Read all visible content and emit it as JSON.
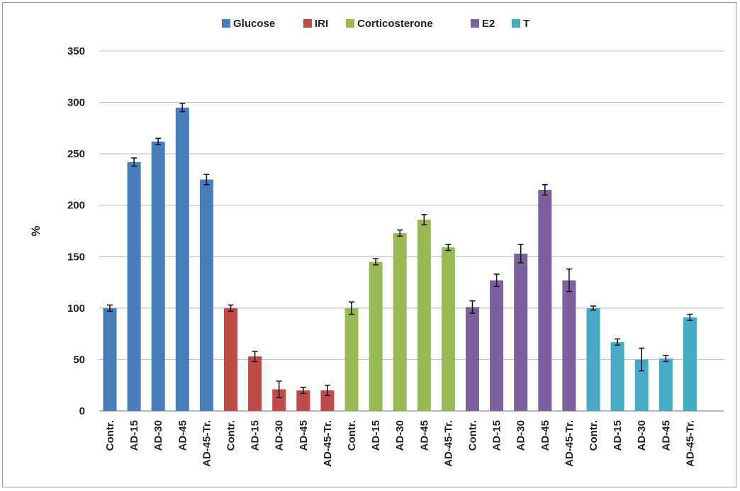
{
  "chart_data": {
    "type": "bar",
    "title": "",
    "xlabel": "",
    "ylabel": "%",
    "ylim": [
      0,
      350
    ],
    "yticks": [
      0,
      50,
      100,
      150,
      200,
      250,
      300,
      350
    ],
    "grid": true,
    "legend_position": "top",
    "error_bars": true,
    "series": [
      {
        "name": "Glucose",
        "color": "#4a7ebb",
        "categories": [
          "Contr.",
          "AD-15",
          "AD-30",
          "AD-45",
          "AD-45-Tr."
        ],
        "values": [
          100,
          242,
          262,
          295,
          225
        ],
        "errors": [
          3,
          4,
          3,
          4,
          5
        ]
      },
      {
        "name": "IRI",
        "color": "#be4b48",
        "categories": [
          "Contr.",
          "AD-15",
          "AD-30",
          "AD-45",
          "AD-45-Tr."
        ],
        "values": [
          100,
          53,
          21,
          20,
          20
        ],
        "errors": [
          3,
          5,
          8,
          3,
          5
        ]
      },
      {
        "name": "Corticosterone",
        "color": "#98b954",
        "categories": [
          "Contr.",
          "AD-15",
          "AD-30",
          "AD-45",
          "AD-45-Tr."
        ],
        "values": [
          100,
          145,
          173,
          186,
          159
        ],
        "errors": [
          6,
          3,
          3,
          5,
          3
        ]
      },
      {
        "name": "E2",
        "color": "#7d60a0",
        "categories": [
          "Contr.",
          "AD-15",
          "AD-30",
          "AD-45",
          "AD-45-Tr."
        ],
        "values": [
          101,
          127,
          153,
          215,
          127
        ],
        "errors": [
          6,
          6,
          9,
          5,
          11
        ]
      },
      {
        "name": "T",
        "color": "#46aac5",
        "categories": [
          "Contr.",
          "AD-15",
          "AD-30",
          "AD-45",
          "AD-45-Tr."
        ],
        "values": [
          100,
          67,
          50,
          51,
          91
        ],
        "errors": [
          2,
          3,
          11,
          3,
          3
        ]
      }
    ]
  }
}
